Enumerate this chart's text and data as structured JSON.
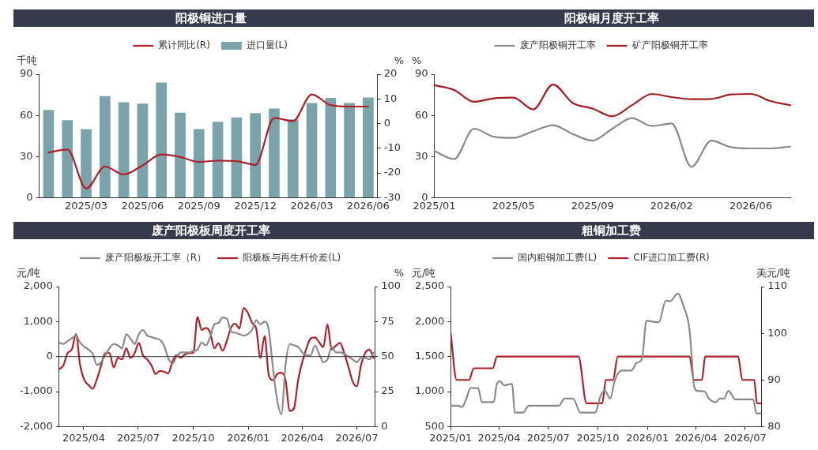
{
  "chart_data": [
    {
      "type": "bar",
      "title": "阳极铜进口量",
      "categories": [
        null,
        null,
        "2025/03",
        null,
        null,
        "2025/06",
        null,
        null,
        "2025/09",
        null,
        null,
        "2025/12",
        null,
        null,
        "2026/03",
        null,
        null,
        "2026/06"
      ],
      "ylabel": "千吨",
      "y2label": "%",
      "ylim": [
        0,
        90
      ],
      "yticks": [
        0,
        30,
        60,
        90
      ],
      "y2lim": [
        -30,
        20
      ],
      "y2ticks": [
        -30,
        -20,
        -10,
        0,
        10,
        20
      ],
      "legend": "top",
      "marker": "none",
      "series": [
        {
          "name": "累计同比(R)",
          "type": "line",
          "axis": "y2",
          "color": "#b01f2a",
          "values": [
            -11.7,
            -10.5,
            -26.3,
            -17.4,
            -20.6,
            -16.9,
            -12.5,
            -13.5,
            -15.5,
            -15,
            -15.2,
            -16.7,
            2.3,
            1,
            11.8,
            7.5,
            6.9,
            6.9
          ]
        },
        {
          "name": "进口量(L)",
          "color": "#7ba3aa",
          "values": [
            64,
            56.5,
            50,
            74,
            69.5,
            68.6,
            84,
            62,
            50,
            55.3,
            58.5,
            61.7,
            65,
            57,
            69,
            72.8,
            69,
            73
          ]
        }
      ]
    },
    {
      "type": "line",
      "title": "阳极铜月度开工率",
      "categories": [
        "2025/01",
        null,
        null,
        null,
        "2025/05",
        null,
        null,
        null,
        "2025/09",
        null,
        null,
        null,
        "2026/02",
        null,
        null,
        null,
        "2026/06",
        null,
        null
      ],
      "ylabel": "%",
      "ylim": [
        0,
        90
      ],
      "yticks": [
        0,
        30,
        60,
        90
      ],
      "legend": "top",
      "marker": "none",
      "series": [
        {
          "name": "废产阳极铜开工率",
          "color": "#8a8a8a",
          "values": [
            34,
            28.2,
            50.3,
            44.5,
            43.6,
            48.4,
            52.8,
            46.4,
            41.6,
            50.3,
            58,
            52.2,
            54.1,
            22.5,
            41.6,
            36.8,
            35.9,
            35.9,
            37.2
          ]
        },
        {
          "name": "矿产阳极铜开工率",
          "color": "#a81c24",
          "values": [
            82,
            78.5,
            69.9,
            72.4,
            73,
            64.3,
            82.5,
            69,
            65,
            59.3,
            67.5,
            75.6,
            73.3,
            71.8,
            72,
            75.2,
            75.6,
            70.4,
            67.4
          ]
        }
      ]
    },
    {
      "type": "line",
      "title": "废产阳极板周度开工率",
      "ylabel": "元/吨",
      "y2label": "%",
      "legend": "top",
      "marker": "none",
      "ref_lines": [
        {
          "axis": "y",
          "value": 0,
          "color": "#333333"
        }
      ],
      "x": [
        "2025-02-19",
        "2025-02-26",
        "2025-03-05",
        "2025-03-12",
        "2025-03-19",
        "2025-03-26",
        "2025-04-02",
        "2025-04-09",
        "2025-04-16",
        "2025-04-23",
        "2025-04-30",
        "2025-05-07",
        "2025-05-14",
        "2025-05-21",
        "2025-05-28",
        "2025-06-04",
        "2025-06-11",
        "2025-06-18",
        "2025-06-25",
        "2025-07-02",
        "2025-07-09",
        "2025-07-16",
        "2025-07-23",
        "2025-07-30",
        "2025-08-06",
        "2025-08-13",
        "2025-08-20",
        "2025-08-27",
        "2025-09-03",
        "2025-09-10",
        "2025-09-17",
        "2025-09-24",
        "2025-10-01",
        "2025-10-08",
        "2025-10-15",
        "2025-10-22",
        "2025-10-29",
        "2025-11-05",
        "2025-11-12",
        "2025-11-19",
        "2025-11-26",
        "2025-12-03",
        "2025-12-10",
        "2025-12-17",
        "2025-12-24",
        "2025-12-31",
        "2026-01-07",
        "2026-01-14",
        "2026-01-21",
        "2026-01-28",
        "2026-02-04",
        "2026-02-11",
        "2026-02-18",
        "2026-02-25",
        "2026-03-04",
        "2026-03-11",
        "2026-03-18",
        "2026-03-25",
        "2026-04-01",
        "2026-04-08",
        "2026-04-15",
        "2026-04-22",
        "2026-04-29",
        "2026-05-06",
        "2026-05-13",
        "2026-05-20",
        "2026-05-27",
        "2026-06-03",
        "2026-06-10",
        "2026-06-17",
        "2026-06-24",
        "2026-07-01",
        "2026-07-08",
        "2026-07-15",
        "2026-07-22",
        "2026-07-29"
      ],
      "xlim": [
        "2025-02-19",
        "2026-07-31"
      ],
      "xticks": [
        {
          "value": "2025-04-01",
          "label": "2025/04"
        },
        {
          "value": "2025-07-01",
          "label": "2025/07"
        },
        {
          "value": "2025-10-01",
          "label": "2025/10"
        },
        {
          "value": "2026-01-01",
          "label": "2026/01"
        },
        {
          "value": "2026-04-01",
          "label": "2026/04"
        },
        {
          "value": "2026-07-01",
          "label": "2026/07"
        }
      ],
      "ylim": [
        -2000,
        2000
      ],
      "yticks": [
        {
          "value": -2000,
          "label": "-2,000"
        },
        {
          "value": -1000,
          "label": "-1,000"
        },
        0,
        {
          "value": 1000,
          "label": "1,000"
        },
        {
          "value": 2000,
          "label": "2,000"
        }
      ],
      "y2lim": [
        0,
        100
      ],
      "y2ticks": [
        0,
        25,
        50,
        75,
        100
      ],
      "series": [
        {
          "name": "废产阳极板开工率（R）",
          "axis": "y2",
          "color": "#8a8a8a",
          "values": [
            60,
            59,
            61,
            63,
            65,
            60,
            57,
            55,
            52,
            44,
            46,
            51,
            56,
            59,
            58,
            56,
            66,
            63,
            59,
            66,
            69,
            65,
            64,
            63,
            62,
            58,
            49,
            45,
            50,
            53,
            53,
            53,
            54,
            55,
            60,
            58,
            64,
            73,
            74,
            78,
            77,
            68,
            67,
            66,
            65,
            66,
            69,
            76,
            73,
            75,
            69,
            42,
            19,
            9,
            44,
            59,
            58,
            57,
            53,
            51,
            51,
            58,
            52,
            46,
            48,
            57,
            53,
            53,
            52,
            50,
            48,
            46,
            49,
            49,
            48,
            53
          ]
        },
        {
          "name": "阳极板与再生杆价差(L)",
          "color": "#b01f2a",
          "values": [
            -360,
            -250,
            100,
            200,
            640,
            -250,
            -670,
            -810,
            -920,
            -640,
            -250,
            100,
            100,
            -310,
            -40,
            -80,
            240,
            -40,
            100,
            390,
            30,
            -80,
            -250,
            -500,
            -410,
            -430,
            -480,
            -150,
            40,
            -30,
            60,
            100,
            100,
            1130,
            760,
            820,
            690,
            240,
            380,
            170,
            450,
            830,
            940,
            800,
            1390,
            1250,
            970,
            800,
            -40,
            590,
            -530,
            -670,
            -500,
            -460,
            -670,
            -1550,
            -1480,
            -670,
            -150,
            240,
            520,
            550,
            410,
            270,
            920,
            200,
            310,
            390,
            100,
            -290,
            -710,
            -850,
            -250,
            100,
            200,
            -40
          ]
        }
      ]
    },
    {
      "type": "line",
      "title": "粗铜加工费",
      "ylabel": "元/吨",
      "y2label": "美元/吨",
      "legend": "top",
      "marker": "none",
      "xlim": [
        "2025-01-01",
        "2026-07-31"
      ],
      "xticks": [
        {
          "value": "2025-01-01",
          "label": "2025/01"
        },
        {
          "value": "2025-04-01",
          "label": "2025/04"
        },
        {
          "value": "2025-07-01",
          "label": "2025/07"
        },
        {
          "value": "2025-10-01",
          "label": "2025/10"
        },
        {
          "value": "2026-01-01",
          "label": "2026/01"
        },
        {
          "value": "2026-04-01",
          "label": "2026/04"
        },
        {
          "value": "2026-07-01",
          "label": "2026/07"
        }
      ],
      "ylim": [
        500,
        2500
      ],
      "yticks": [
        500,
        {
          "value": 1000,
          "label": "1,000"
        },
        {
          "value": 1500,
          "label": "1,500"
        },
        {
          "value": 2000,
          "label": "2,000"
        },
        {
          "value": 2500,
          "label": "2,500"
        }
      ],
      "y2lim": [
        80,
        110
      ],
      "y2ticks": [
        80,
        90,
        100,
        110
      ],
      "series": [
        {
          "name": "国内粗铜加工费(L)",
          "color": "#8a8a8a",
          "x": [
            "2025-01-01",
            "2025-01-15",
            "2025-01-22",
            "2025-01-30",
            "2025-02-07",
            "2025-02-21",
            "2025-02-28",
            "2025-03-17",
            "2025-03-22",
            "2025-03-27",
            "2025-04-02",
            "2025-04-10",
            "2025-04-25",
            "2025-04-30",
            "2025-05-15",
            "2025-05-26",
            "2025-07-21",
            "2025-07-31",
            "2025-08-16",
            "2025-08-30",
            "2025-09-26",
            "2025-10-06",
            "2025-10-14",
            "2025-10-24",
            "2025-11-01",
            "2025-11-14",
            "2025-12-02",
            "2025-12-12",
            "2025-12-22",
            "2025-12-30",
            "2026-01-22",
            "2026-02-04",
            "2026-02-12",
            "2026-02-26",
            "2026-03-09",
            "2026-03-20",
            "2026-03-24",
            "2026-03-28",
            "2026-04-04",
            "2026-04-17",
            "2026-04-25",
            "2026-05-08",
            "2026-05-15",
            "2026-05-23",
            "2026-05-31",
            "2026-06-13",
            "2026-07-16",
            "2026-07-22",
            "2026-07-31"
          ],
          "values": [
            800,
            800,
            780,
            900,
            1050,
            1050,
            850,
            850,
            850,
            1090,
            1150,
            1090,
            1110,
            700,
            700,
            800,
            800,
            900,
            900,
            700,
            700,
            940,
            1010,
            900,
            1150,
            1300,
            1300,
            1410,
            1470,
            2010,
            1990,
            2300,
            2290,
            2400,
            2220,
            1880,
            1500,
            1090,
            1010,
            1000,
            900,
            850,
            900,
            900,
            1010,
            890,
            890,
            690,
            690
          ]
        },
        {
          "name": "CIF进口加工费(R)",
          "axis": "y2",
          "color": "#b01f2a",
          "x": [
            "2025-01-01",
            "2025-01-12",
            "2025-02-04",
            "2025-02-13",
            "2025-03-20",
            "2025-03-28",
            "2025-08-26",
            "2025-09-10",
            "2025-10-09",
            "2025-10-16",
            "2025-10-29",
            "2025-11-07",
            "2026-03-20",
            "2026-03-28",
            "2026-04-12",
            "2026-04-18",
            "2026-06-18",
            "2026-06-26",
            "2026-07-18",
            "2026-07-23",
            "2026-07-31"
          ],
          "values": [
            100,
            90,
            90,
            92.5,
            92.5,
            95,
            95,
            85,
            85,
            90,
            90,
            95,
            95,
            90,
            90,
            95,
            95,
            90,
            90,
            85,
            85
          ]
        }
      ]
    }
  ]
}
